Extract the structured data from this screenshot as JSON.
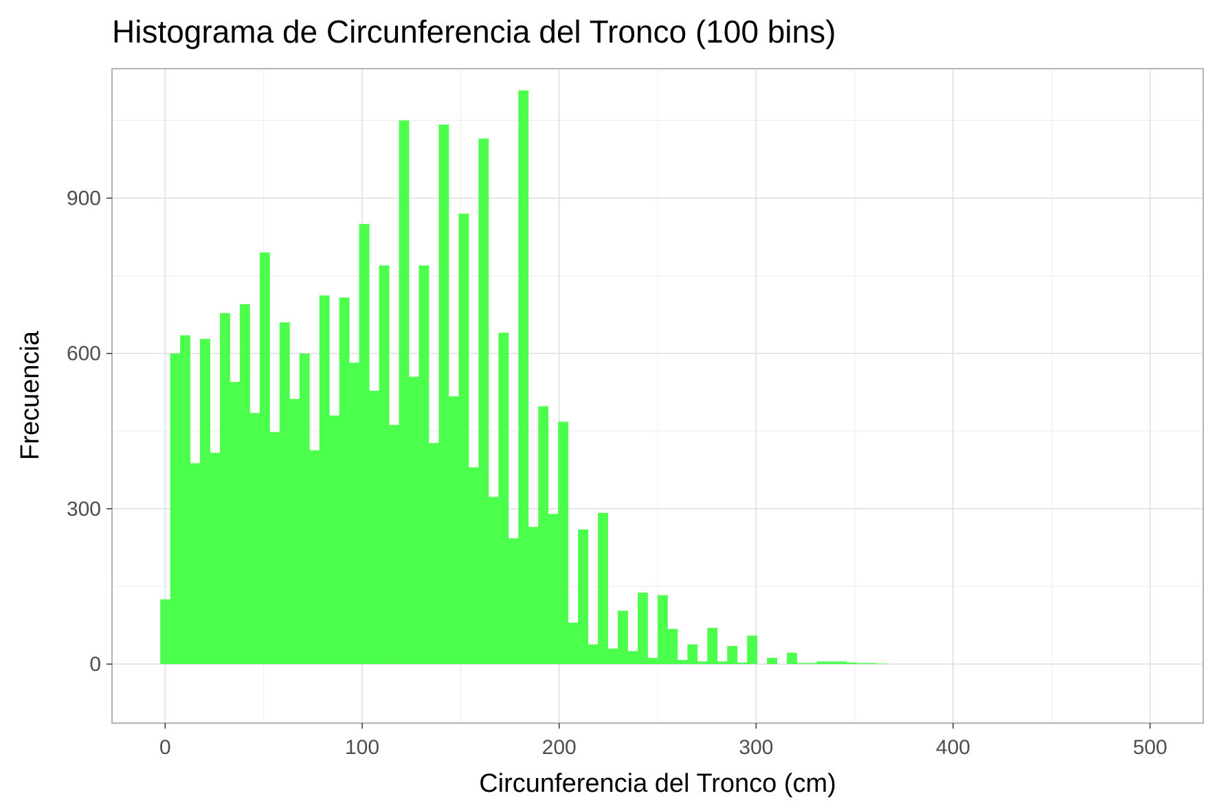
{
  "chart_data": {
    "type": "bar",
    "title": "Histograma de Circunferencia del Tronco (100 bins)",
    "xlabel": "Circunferencia del Tronco (cm)",
    "ylabel": "Frecuencia",
    "xlim": [
      -27,
      527
    ],
    "ylim": [
      -114,
      1150
    ],
    "x_ticks": [
      0,
      100,
      200,
      300,
      400,
      500
    ],
    "y_ticks": [
      0,
      300,
      600,
      900
    ],
    "grid": true,
    "bin_width": 5.05,
    "bin_start": -2.525,
    "values": [
      125,
      600,
      635,
      388,
      628,
      408,
      678,
      545,
      695,
      485,
      795,
      448,
      660,
      512,
      600,
      413,
      712,
      480,
      708,
      582,
      850,
      528,
      770,
      462,
      1050,
      555,
      770,
      427,
      1042,
      517,
      870,
      380,
      1015,
      323,
      640,
      243,
      1108,
      265,
      498,
      290,
      468,
      80,
      260,
      38,
      292,
      30,
      103,
      25,
      138,
      12,
      133,
      68,
      8,
      38,
      5,
      70,
      5,
      35,
      3,
      55,
      0,
      12,
      0,
      22,
      2,
      2,
      5,
      5,
      5,
      3,
      2,
      2,
      1,
      0,
      0,
      0,
      0,
      0,
      0,
      0,
      0,
      0,
      0,
      0,
      0,
      0,
      0,
      0,
      0,
      0,
      0,
      0,
      0,
      0,
      0,
      0,
      0,
      0,
      0,
      0
    ],
    "colors": {
      "bar": "#4dff4d",
      "panel_border": "#b3b3b3",
      "grid_major": "#dddddd",
      "grid_minor": "#ececec",
      "tick_text": "#4d4d4d"
    }
  }
}
